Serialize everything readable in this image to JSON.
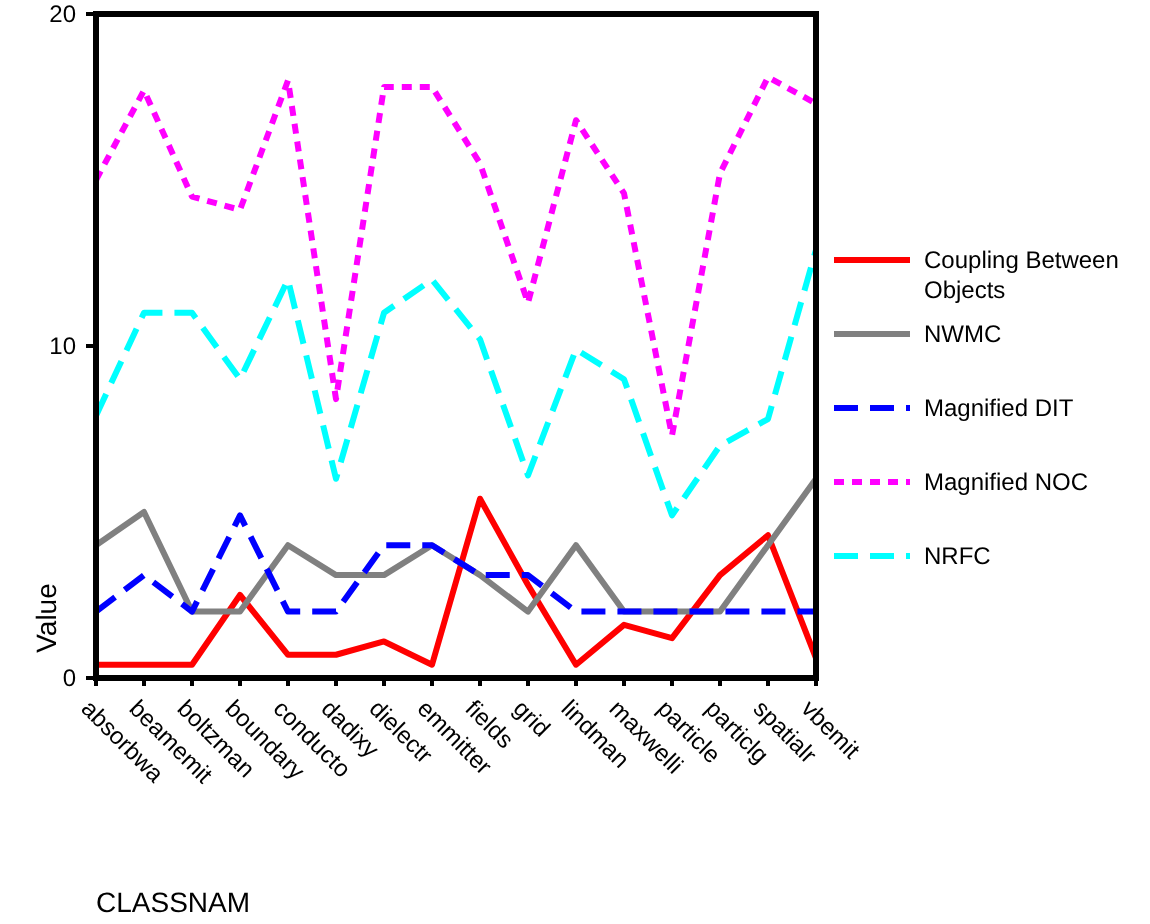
{
  "chart_data": {
    "type": "line",
    "xlabel": "CLASSNAM",
    "ylabel": "Value",
    "categories": [
      "absorbwa",
      "beamemit",
      "boltzman",
      "boundary",
      "conducto",
      "dadixy",
      "dielectr",
      "emmitter",
      "fields",
      "grid",
      "lindman",
      "maxwelli",
      "particle",
      "particlg",
      "spatialr",
      "vbemit"
    ],
    "ylim": [
      0,
      20
    ],
    "yticks": [
      0,
      10,
      20
    ],
    "grid": false,
    "legend": "right",
    "marker": "none",
    "series": [
      {
        "name": "Coupling Between Objects",
        "color": "#ff0000",
        "line_style": "solid",
        "values": [
          0.4,
          0.4,
          0.4,
          2.5,
          0.7,
          0.7,
          1.1,
          0.4,
          5.4,
          2.8,
          0.4,
          1.6,
          1.2,
          3.1,
          4.3,
          0.6
        ]
      },
      {
        "name": "NWMC",
        "color": "#808080",
        "line_style": "solid",
        "values": [
          4.0,
          5.0,
          2.0,
          2.0,
          4.0,
          3.1,
          3.1,
          4.0,
          3.1,
          2.0,
          4.0,
          2.0,
          2.0,
          2.0,
          4.0,
          6.0
        ]
      },
      {
        "name": "Magnified DIT",
        "color": "#0000ff",
        "line_style": "dashed",
        "values": [
          2.0,
          3.1,
          2.0,
          4.9,
          2.0,
          2.0,
          4.0,
          4.0,
          3.1,
          3.1,
          2.0,
          2.0,
          2.0,
          2.0,
          2.0,
          2.0
        ]
      },
      {
        "name": "Magnified NOC",
        "color": "#ff00ff",
        "line_style": "dotted",
        "values": [
          15.0,
          17.7,
          14.5,
          14.1,
          18.0,
          8.4,
          17.8,
          17.8,
          15.5,
          11.3,
          16.8,
          14.6,
          7.3,
          15.2,
          18.1,
          17.3
        ]
      },
      {
        "name": "NRFC",
        "color": "#00ffff",
        "line_style": "dashed",
        "values": [
          7.9,
          11.0,
          11.0,
          9.0,
          12.0,
          6.0,
          11.0,
          12.0,
          10.2,
          6.1,
          9.9,
          9.0,
          4.9,
          7.0,
          7.8,
          12.9
        ]
      }
    ]
  }
}
